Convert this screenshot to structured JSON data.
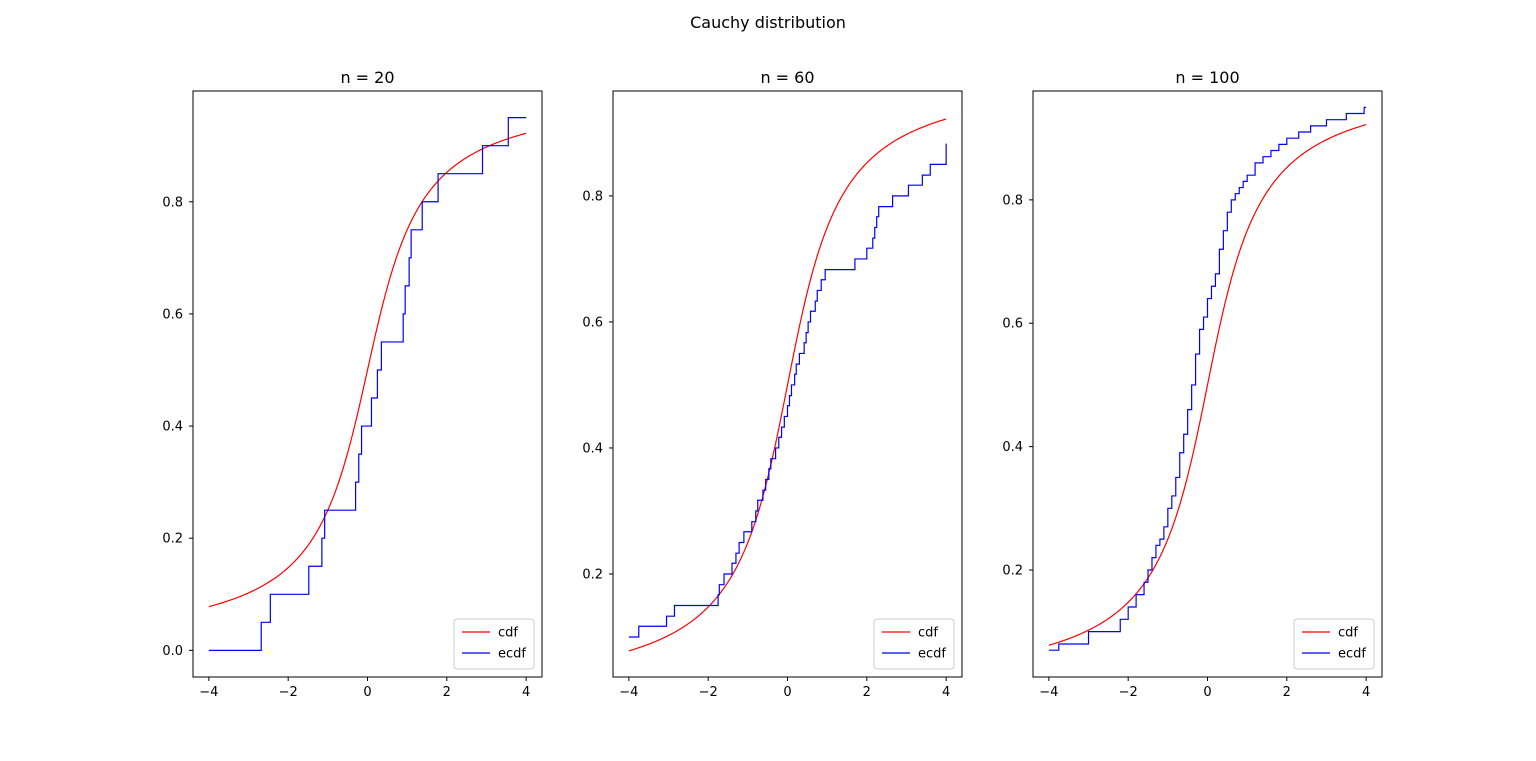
{
  "figure": {
    "suptitle": "Cauchy distribution"
  },
  "chart_data": [
    {
      "type": "line",
      "title": "n = 20",
      "xlabel": "",
      "ylabel": "",
      "xlim": [
        -4.4,
        4.4
      ],
      "ylim": [
        -0.0475,
        0.9975
      ],
      "xticks": [
        -4,
        -2,
        0,
        2,
        4
      ],
      "xtick_labels": [
        "−4",
        "−2",
        "0",
        "2",
        "4"
      ],
      "yticks": [
        0.0,
        0.2,
        0.4,
        0.6,
        0.8
      ],
      "ytick_labels": [
        "0.0",
        "0.2",
        "0.4",
        "0.6",
        "0.8"
      ],
      "legend": {
        "placement": "lower-right",
        "entries": [
          "cdf",
          "ecdf"
        ]
      },
      "grid": false,
      "series": [
        {
          "name": "cdf",
          "kind": "function",
          "formula": "0.5 + atan(x)/pi",
          "x_range": [
            -4,
            4
          ],
          "color": "#ff0000"
        },
        {
          "name": "ecdf",
          "kind": "step",
          "color": "#0000ff",
          "x": [
            -4.0,
            -2.68,
            -2.45,
            -1.48,
            -1.15,
            -1.08,
            -1.06,
            -0.3,
            -0.22,
            -0.15,
            0.1,
            0.25,
            0.3,
            0.35,
            0.9,
            0.95,
            1.05,
            1.1,
            1.18,
            1.38,
            1.78,
            2.9,
            3.55,
            4.0
          ],
          "y": [
            0.0,
            0.05,
            0.1,
            0.15,
            0.2,
            0.25,
            0.25,
            0.3,
            0.35,
            0.4,
            0.45,
            0.5,
            0.5,
            0.55,
            0.6,
            0.65,
            0.7,
            0.75,
            0.75,
            0.8,
            0.85,
            0.9,
            0.95,
            0.95
          ]
        }
      ]
    },
    {
      "type": "line",
      "title": "n = 60",
      "xlabel": "",
      "ylabel": "",
      "xlim": [
        -4.4,
        4.4
      ],
      "ylim": [
        0.0365,
        0.9665
      ],
      "xticks": [
        -4,
        -2,
        0,
        2,
        4
      ],
      "xtick_labels": [
        "−4",
        "−2",
        "0",
        "2",
        "4"
      ],
      "yticks": [
        0.2,
        0.4,
        0.6,
        0.8
      ],
      "ytick_labels": [
        "0.2",
        "0.4",
        "0.6",
        "0.8"
      ],
      "legend": {
        "placement": "lower-right",
        "entries": [
          "cdf",
          "ecdf"
        ]
      },
      "grid": false,
      "series": [
        {
          "name": "cdf",
          "kind": "function",
          "formula": "0.5 + atan(x)/pi",
          "x_range": [
            -4,
            4
          ],
          "color": "#ff0000"
        },
        {
          "name": "ecdf",
          "kind": "step",
          "color": "#0000ff",
          "x": [
            -4.0,
            -3.75,
            -3.05,
            -2.85,
            -1.75,
            -1.72,
            -1.6,
            -1.4,
            -1.3,
            -1.22,
            -1.1,
            -0.9,
            -0.8,
            -0.75,
            -0.62,
            -0.55,
            -0.47,
            -0.42,
            -0.3,
            -0.22,
            -0.15,
            -0.08,
            0.0,
            0.05,
            0.1,
            0.18,
            0.22,
            0.3,
            0.42,
            0.47,
            0.52,
            0.58,
            0.7,
            0.75,
            0.85,
            0.95,
            1.7,
            2.0,
            2.15,
            2.2,
            2.25,
            2.3,
            2.65,
            3.05,
            3.4,
            3.6,
            4.0
          ],
          "y": [
            0.1,
            0.117,
            0.133,
            0.15,
            0.167,
            0.183,
            0.2,
            0.217,
            0.233,
            0.25,
            0.267,
            0.283,
            0.3,
            0.317,
            0.333,
            0.35,
            0.367,
            0.383,
            0.4,
            0.417,
            0.433,
            0.45,
            0.467,
            0.483,
            0.5,
            0.517,
            0.533,
            0.55,
            0.567,
            0.583,
            0.6,
            0.617,
            0.633,
            0.65,
            0.667,
            0.683,
            0.7,
            0.717,
            0.733,
            0.75,
            0.767,
            0.783,
            0.8,
            0.817,
            0.833,
            0.85,
            0.883
          ]
        }
      ]
    },
    {
      "type": "line",
      "title": "n = 100",
      "xlabel": "",
      "ylabel": "",
      "xlim": [
        -4.4,
        4.4
      ],
      "ylim": [
        0.0265,
        0.9765
      ],
      "xticks": [
        -4,
        -2,
        0,
        2,
        4
      ],
      "xtick_labels": [
        "−4",
        "−2",
        "0",
        "2",
        "4"
      ],
      "yticks": [
        0.2,
        0.4,
        0.6,
        0.8
      ],
      "ytick_labels": [
        "0.2",
        "0.4",
        "0.6",
        "0.8"
      ],
      "legend": {
        "placement": "lower-right",
        "entries": [
          "cdf",
          "ecdf"
        ]
      },
      "grid": false,
      "series": [
        {
          "name": "cdf",
          "kind": "function",
          "formula": "0.5 + atan(x)/pi",
          "x_range": [
            -4,
            4
          ],
          "color": "#ff0000"
        },
        {
          "name": "ecdf",
          "kind": "step",
          "color": "#0000ff",
          "x": [
            -4.0,
            -3.75,
            -3.0,
            -2.2,
            -2.0,
            -1.8,
            -1.6,
            -1.5,
            -1.4,
            -1.3,
            -1.2,
            -1.1,
            -1.0,
            -0.9,
            -0.8,
            -0.7,
            -0.6,
            -0.5,
            -0.4,
            -0.3,
            -0.2,
            -0.1,
            0.0,
            0.1,
            0.2,
            0.3,
            0.4,
            0.5,
            0.6,
            0.7,
            0.8,
            0.9,
            1.0,
            1.2,
            1.4,
            1.6,
            1.8,
            2.0,
            2.3,
            2.6,
            3.0,
            3.5,
            3.95,
            4.0
          ],
          "y": [
            0.07,
            0.08,
            0.1,
            0.12,
            0.14,
            0.16,
            0.18,
            0.2,
            0.22,
            0.24,
            0.25,
            0.27,
            0.3,
            0.32,
            0.35,
            0.39,
            0.42,
            0.46,
            0.5,
            0.55,
            0.59,
            0.61,
            0.64,
            0.66,
            0.68,
            0.72,
            0.75,
            0.78,
            0.8,
            0.81,
            0.82,
            0.83,
            0.84,
            0.86,
            0.87,
            0.88,
            0.89,
            0.9,
            0.91,
            0.92,
            0.93,
            0.94,
            0.95,
            0.95
          ]
        }
      ]
    }
  ]
}
